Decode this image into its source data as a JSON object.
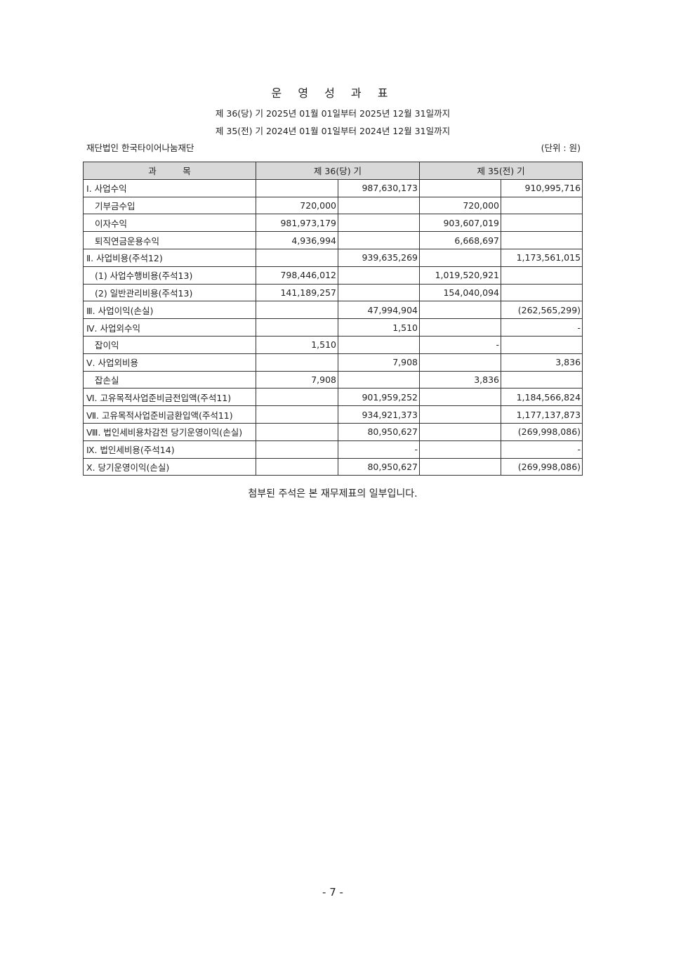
{
  "title": "운 영 성 과 표",
  "periods": [
    "제 36(당) 기 2025년 01월 01일부터 2025년 12월 31일까지",
    "제 35(전) 기 2024년 01월 01일부터 2024년 12월 31일까지"
  ],
  "organization": "재단법인 한국타이어나눔재단",
  "unit": "(단위 : 원)",
  "table": {
    "headers": [
      "과　　　목",
      "제 36(당) 기",
      "제 35(전) 기"
    ],
    "rows": [
      {
        "label": "Ⅰ. 사업수익",
        "indent": false,
        "cells": [
          "",
          "987,630,173",
          "",
          "910,995,716"
        ]
      },
      {
        "label": "기부금수입",
        "indent": true,
        "cells": [
          "720,000",
          "",
          "720,000",
          ""
        ]
      },
      {
        "label": "이자수익",
        "indent": true,
        "cells": [
          "981,973,179",
          "",
          "903,607,019",
          ""
        ]
      },
      {
        "label": "퇴직연금운용수익",
        "indent": true,
        "cells": [
          "4,936,994",
          "",
          "6,668,697",
          ""
        ]
      },
      {
        "label": "Ⅱ. 사업비용(주석12)",
        "indent": false,
        "cells": [
          "",
          "939,635,269",
          "",
          "1,173,561,015"
        ]
      },
      {
        "label": "(1) 사업수행비용(주석13)",
        "indent": true,
        "cells": [
          "798,446,012",
          "",
          "1,019,520,921",
          ""
        ]
      },
      {
        "label": "(2) 일반관리비용(주석13)",
        "indent": true,
        "cells": [
          "141,189,257",
          "",
          "154,040,094",
          ""
        ]
      },
      {
        "label": "Ⅲ. 사업이익(손실)",
        "indent": false,
        "cells": [
          "",
          "47,994,904",
          "",
          "(262,565,299)"
        ]
      },
      {
        "label": "Ⅳ. 사업외수익",
        "indent": false,
        "cells": [
          "",
          "1,510",
          "",
          "-"
        ]
      },
      {
        "label": "잡이익",
        "indent": true,
        "cells": [
          "1,510",
          "",
          "-",
          ""
        ]
      },
      {
        "label": "Ⅴ. 사업외비용",
        "indent": false,
        "cells": [
          "",
          "7,908",
          "",
          "3,836"
        ]
      },
      {
        "label": "잡손실",
        "indent": true,
        "cells": [
          "7,908",
          "",
          "3,836",
          ""
        ]
      },
      {
        "label": "Ⅵ. 고유목적사업준비금전입액(주석11)",
        "indent": false,
        "cells": [
          "",
          "901,959,252",
          "",
          "1,184,566,824"
        ]
      },
      {
        "label": "Ⅶ. 고유목적사업준비금환입액(주석11)",
        "indent": false,
        "cells": [
          "",
          "934,921,373",
          "",
          "1,177,137,873"
        ]
      },
      {
        "label": "Ⅷ. 법인세비용차감전 당기운영이익(손실)",
        "indent": false,
        "cells": [
          "",
          "80,950,627",
          "",
          "(269,998,086)"
        ]
      },
      {
        "label": "Ⅸ. 법인세비용(주석14)",
        "indent": false,
        "cells": [
          "",
          "-",
          "",
          "-"
        ]
      },
      {
        "label": "Ⅹ. 당기운영이익(손실)",
        "indent": false,
        "cells": [
          "",
          "80,950,627",
          "",
          "(269,998,086)"
        ]
      }
    ]
  },
  "note": "첨부된 주석은 본 재무제표의 일부입니다.",
  "page_number": "- 7 -"
}
